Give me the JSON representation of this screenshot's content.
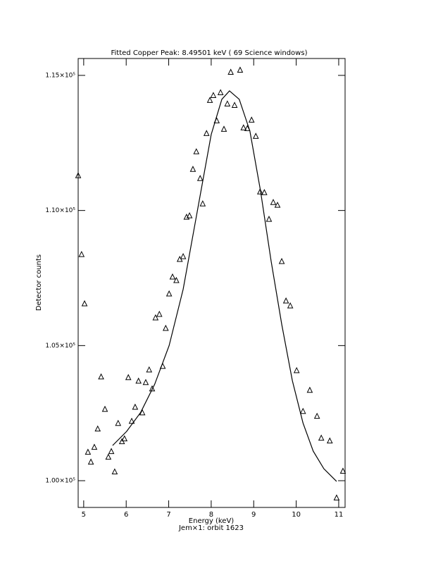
{
  "chart_data": {
    "type": "scatter",
    "title": "Fitted Copper Peak:       8.49501 keV (      69 Science windows)",
    "x_label": "Energy (keV)",
    "subtitle": "Jem×1: orbit 1623",
    "y_label": "Detector counts",
    "xlim": [
      4.87,
      11.15
    ],
    "ylim": [
      99010,
      115625
    ],
    "xticks": [
      5,
      6,
      7,
      8,
      9,
      10,
      11
    ],
    "yticks": [
      {
        "value": 100000,
        "label": "1.00×10⁵"
      },
      {
        "value": 105000,
        "label": "1.05×10⁵"
      },
      {
        "value": 110000,
        "label": "1.10×10⁵"
      },
      {
        "value": 115000,
        "label": "1.15×10⁵"
      }
    ],
    "series": [
      {
        "marker": "triangle",
        "color": "#000000",
        "x": [
          4.87,
          4.95,
          5.02,
          5.1,
          5.17,
          5.25,
          5.33,
          5.41,
          5.5,
          5.58,
          5.65,
          5.73,
          5.81,
          5.9,
          5.96,
          6.05,
          6.13,
          6.21,
          6.29,
          6.38,
          6.46,
          6.54,
          6.61,
          6.69,
          6.78,
          6.86,
          6.93,
          7.01,
          7.09,
          7.18,
          7.26,
          7.34,
          7.42,
          7.49,
          7.57,
          7.65,
          7.74,
          7.8,
          7.89,
          7.97,
          8.05,
          8.13,
          8.22,
          8.3,
          8.38,
          8.46,
          8.55,
          8.68,
          8.76,
          8.85,
          8.95,
          9.05,
          9.15,
          9.25,
          9.36,
          9.46,
          9.56,
          9.66,
          9.76,
          9.86,
          10.01,
          10.16,
          10.32,
          10.49,
          10.59,
          10.79,
          10.95,
          11.1
        ],
        "values": [
          111302,
          108385,
          106562,
          101068,
          100703,
          101250,
          101927,
          103854,
          102656,
          100885,
          101094,
          100339,
          102135,
          101458,
          101562,
          103828,
          102213,
          102734,
          103698,
          102526,
          103646,
          104114,
          103411,
          106041,
          106171,
          104245,
          105651,
          106927,
          107552,
          107421,
          108203,
          108307,
          109765,
          109817,
          111536,
          112187,
          111197,
          110260,
          112864,
          114088,
          114270,
          113333,
          114374,
          113020,
          113957,
          115129,
          113905,
          115207,
          113072,
          113046,
          113359,
          112760,
          110702,
          110676,
          109687,
          110312,
          110208,
          108125,
          106666,
          106484,
          104088,
          102578,
          103359,
          102396,
          101588,
          101484,
          99375,
          100365
        ]
      },
      {
        "marker": "line",
        "color": "#000000",
        "x": [
          5.68,
          6.01,
          6.34,
          6.67,
          7.01,
          7.34,
          7.67,
          8.0,
          8.25,
          8.43,
          8.66,
          8.91,
          9.16,
          9.41,
          9.66,
          9.91,
          10.16,
          10.4,
          10.65,
          10.95
        ],
        "values": [
          101302,
          101823,
          102526,
          103567,
          105000,
          107083,
          109947,
          112812,
          114114,
          114426,
          114114,
          112942,
          110729,
          108125,
          105781,
          103698,
          102135,
          101094,
          100443,
          99974
        ]
      }
    ]
  }
}
